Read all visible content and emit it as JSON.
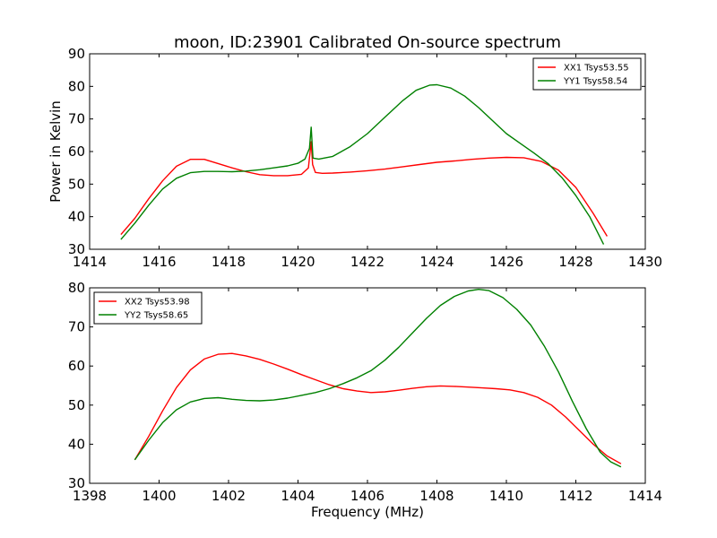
{
  "title": "moon, ID:23901 Calibrated On-source spectrum",
  "chart_data": [
    {
      "type": "line",
      "title": "moon, ID:23901 Calibrated On-source spectrum",
      "xlabel": "",
      "ylabel": "Power in Kelvin",
      "xlim": [
        1414,
        1430
      ],
      "ylim": [
        30,
        90
      ],
      "xticks": [
        1414,
        1416,
        1418,
        1420,
        1422,
        1424,
        1426,
        1428,
        1430
      ],
      "yticks": [
        30,
        40,
        50,
        60,
        70,
        80,
        90
      ],
      "grid": false,
      "legend_position": "top-right",
      "series": [
        {
          "name": "XX1 Tsys53.55",
          "color": "#ff0000",
          "x": [
            1414.9,
            1415.3,
            1415.7,
            1416.1,
            1416.5,
            1416.9,
            1417.3,
            1417.7,
            1418.1,
            1418.5,
            1418.9,
            1419.3,
            1419.7,
            1420.1,
            1420.3,
            1420.38,
            1420.42,
            1420.5,
            1420.7,
            1421.0,
            1421.5,
            1422.0,
            1422.5,
            1423.0,
            1423.5,
            1424.0,
            1424.5,
            1425.0,
            1425.5,
            1426.0,
            1426.5,
            1427.0,
            1427.5,
            1428.0,
            1428.5,
            1428.9
          ],
          "y": [
            34.5,
            39.5,
            45.5,
            51,
            55.5,
            57.6,
            57.6,
            56.3,
            55,
            53.8,
            52.9,
            52.6,
            52.6,
            53,
            55,
            63,
            56,
            53.6,
            53.3,
            53.4,
            53.7,
            54.1,
            54.6,
            55.3,
            56,
            56.7,
            57.1,
            57.6,
            58,
            58.2,
            58.1,
            57,
            54.3,
            49,
            41,
            34
          ]
        },
        {
          "name": "YY1 Tsys58.54",
          "color": "#008000",
          "x": [
            1414.9,
            1415.3,
            1415.7,
            1416.1,
            1416.5,
            1416.9,
            1417.3,
            1417.7,
            1418.1,
            1418.5,
            1418.9,
            1419.3,
            1419.7,
            1420.0,
            1420.2,
            1420.33,
            1420.38,
            1420.43,
            1420.6,
            1421.0,
            1421.5,
            1422.0,
            1422.5,
            1423.0,
            1423.4,
            1423.8,
            1424.0,
            1424.4,
            1424.8,
            1425.2,
            1425.6,
            1426.0,
            1426.4,
            1426.8,
            1427.2,
            1427.6,
            1428.0,
            1428.4,
            1428.8
          ],
          "y": [
            33,
            38,
            43.5,
            48.5,
            51.8,
            53.5,
            53.9,
            53.9,
            53.8,
            54,
            54.4,
            55,
            55.6,
            56.4,
            57.7,
            61,
            67.5,
            58,
            57.7,
            58.5,
            61.5,
            65.5,
            70.5,
            75.5,
            78.8,
            80.4,
            80.5,
            79.5,
            77,
            73.5,
            69.5,
            65.5,
            62.5,
            59.5,
            56.3,
            52,
            46.5,
            40,
            31.5
          ]
        }
      ]
    },
    {
      "type": "line",
      "title": "",
      "xlabel": "Frequency (MHz)",
      "ylabel": "",
      "xlim": [
        1398,
        1414
      ],
      "ylim": [
        30,
        80
      ],
      "xticks": [
        1398,
        1400,
        1402,
        1404,
        1406,
        1408,
        1410,
        1412,
        1414
      ],
      "yticks": [
        30,
        40,
        50,
        60,
        70,
        80
      ],
      "grid": false,
      "legend_position": "top-left",
      "series": [
        {
          "name": "XX2 Tsys53.98",
          "color": "#ff0000",
          "x": [
            1399.3,
            1399.7,
            1400.1,
            1400.5,
            1400.9,
            1401.3,
            1401.7,
            1402.1,
            1402.5,
            1402.9,
            1403.3,
            1403.7,
            1404.1,
            1404.5,
            1404.9,
            1405.3,
            1405.7,
            1406.1,
            1406.5,
            1406.9,
            1407.3,
            1407.7,
            1408.1,
            1408.5,
            1408.9,
            1409.3,
            1409.7,
            1410.1,
            1410.5,
            1410.9,
            1411.3,
            1411.7,
            1412.1,
            1412.5,
            1412.9,
            1413.3
          ],
          "y": [
            36,
            42,
            48.5,
            54.5,
            59,
            61.8,
            63,
            63.2,
            62.6,
            61.7,
            60.5,
            59.2,
            57.8,
            56.5,
            55.2,
            54.2,
            53.6,
            53.2,
            53.4,
            53.8,
            54.3,
            54.7,
            54.9,
            54.8,
            54.6,
            54.4,
            54.2,
            53.9,
            53.2,
            52,
            50,
            47,
            43.5,
            40,
            37,
            35
          ]
        },
        {
          "name": "YY2 Tsys58.65",
          "color": "#008000",
          "x": [
            1399.3,
            1399.7,
            1400.1,
            1400.5,
            1400.9,
            1401.3,
            1401.7,
            1402.1,
            1402.5,
            1402.9,
            1403.3,
            1403.7,
            1404.1,
            1404.5,
            1404.9,
            1405.3,
            1405.7,
            1406.1,
            1406.5,
            1406.9,
            1407.3,
            1407.7,
            1408.1,
            1408.5,
            1408.9,
            1409.2,
            1409.5,
            1409.9,
            1410.3,
            1410.7,
            1411.1,
            1411.5,
            1411.9,
            1412.3,
            1412.7,
            1413.0,
            1413.3
          ],
          "y": [
            36,
            41,
            45.5,
            48.8,
            50.8,
            51.7,
            51.9,
            51.5,
            51.2,
            51.1,
            51.3,
            51.8,
            52.5,
            53.2,
            54.2,
            55.5,
            57,
            58.8,
            61.5,
            64.8,
            68.5,
            72.2,
            75.5,
            77.8,
            79.2,
            79.6,
            79.3,
            77.5,
            74.5,
            70.5,
            65,
            58.5,
            51,
            44,
            38,
            35.5,
            34.2
          ]
        }
      ]
    }
  ]
}
